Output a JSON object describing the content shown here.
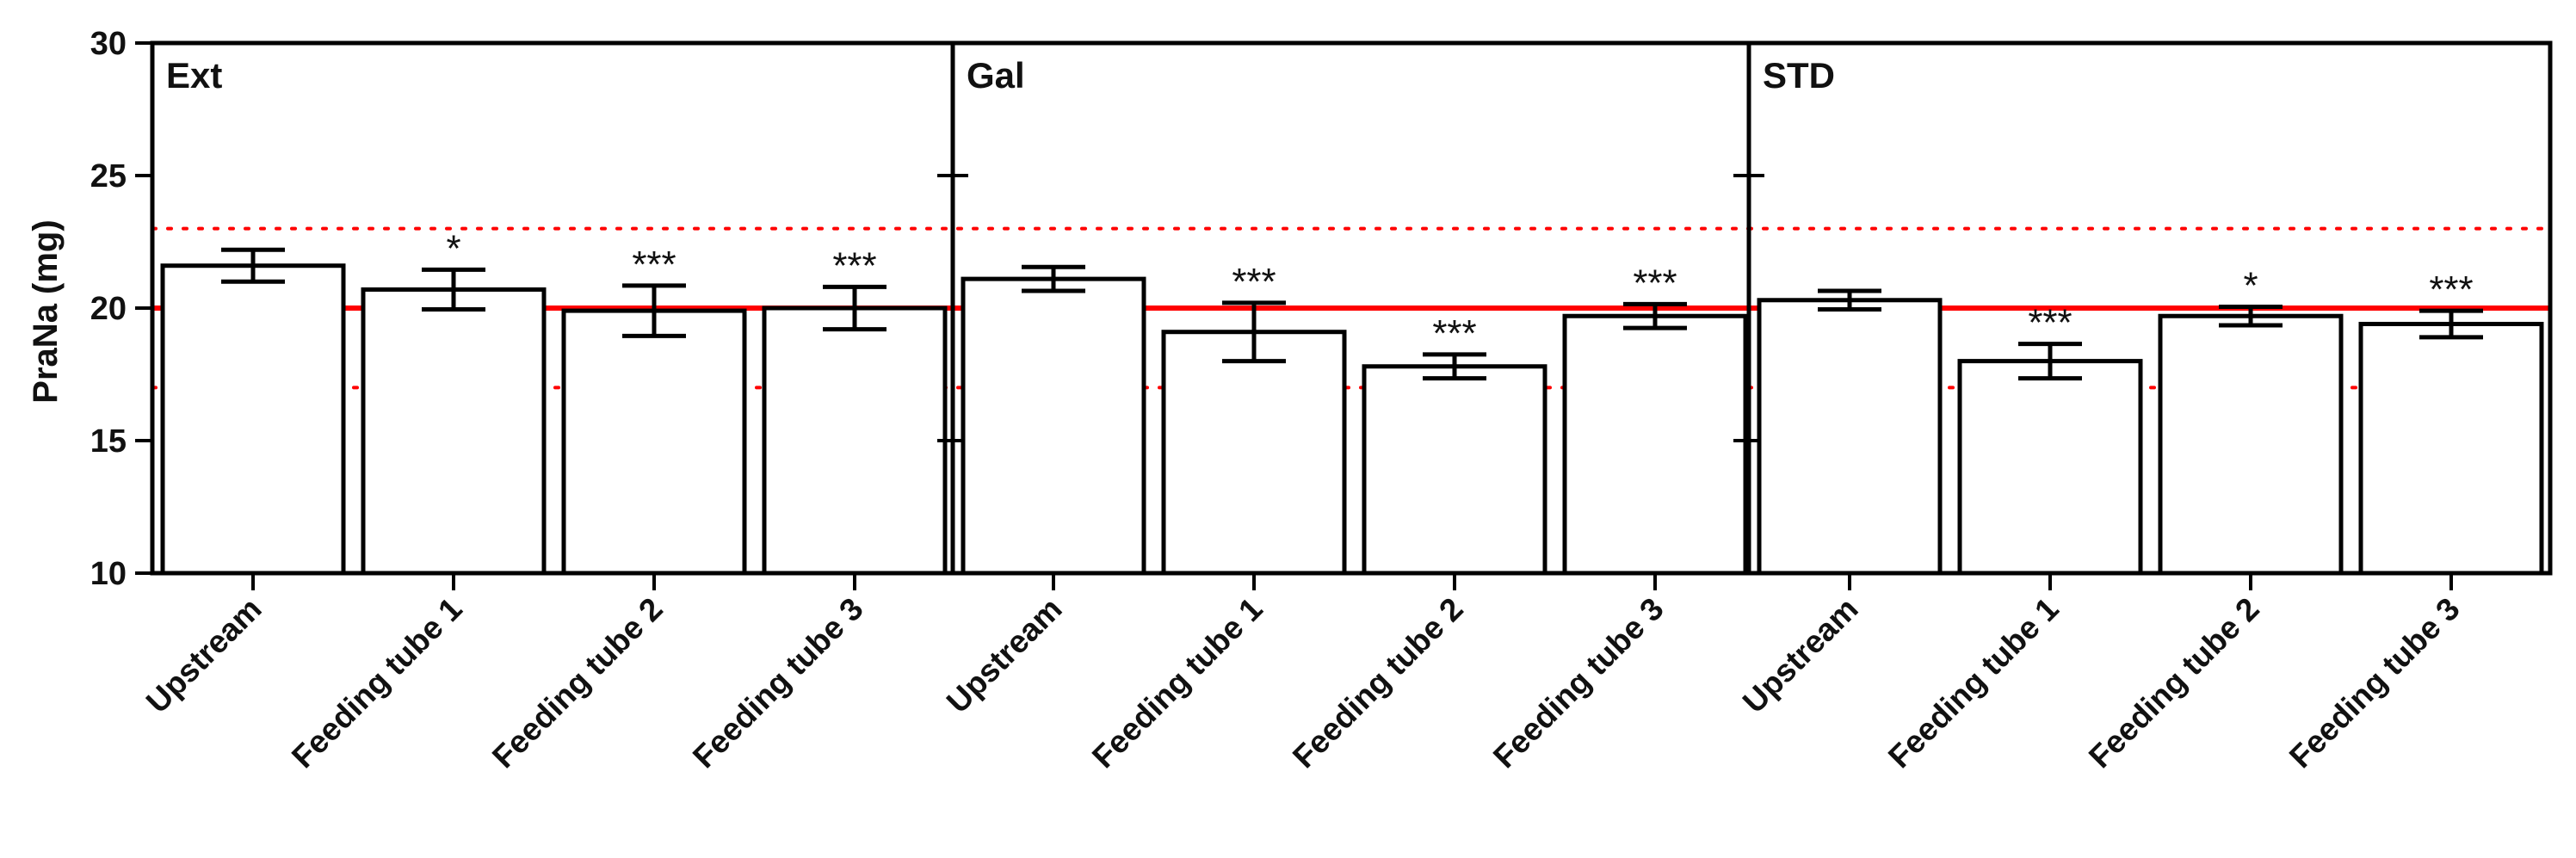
{
  "chart_data": {
    "type": "bar",
    "ylabel": "PraNa (mg)",
    "ylim": [
      10,
      30
    ],
    "yticks": [
      10,
      15,
      20,
      25,
      30
    ],
    "reference_lines": [
      {
        "value": 20,
        "style": "solid",
        "color": "#ff0000"
      },
      {
        "value": 23,
        "style": "dotted",
        "color": "#ff0000"
      },
      {
        "value": 17,
        "style": "dotted",
        "color": "#ff0000"
      }
    ],
    "colors": {
      "bar_fill": "#ffffff",
      "bar_stroke": "#000000",
      "reference": "#ff0000"
    },
    "categories": [
      "Upstream",
      "Feeding tube 1",
      "Feeding tube 2",
      "Feeding tube 3"
    ],
    "panels": [
      {
        "label": "Ext",
        "values": [
          21.6,
          20.7,
          19.9,
          20.0
        ],
        "errors": [
          0.6,
          0.75,
          0.95,
          0.8
        ],
        "significance": [
          "",
          "*",
          "***",
          "***"
        ]
      },
      {
        "label": "Gal",
        "values": [
          21.1,
          19.1,
          17.8,
          19.7
        ],
        "errors": [
          0.45,
          1.1,
          0.45,
          0.45
        ],
        "significance": [
          "",
          "***",
          "***",
          "***"
        ]
      },
      {
        "label": "STD",
        "values": [
          20.3,
          18.0,
          19.7,
          19.4
        ],
        "errors": [
          0.35,
          0.65,
          0.35,
          0.5
        ],
        "significance": [
          "",
          "***",
          "*",
          "***"
        ]
      }
    ]
  }
}
